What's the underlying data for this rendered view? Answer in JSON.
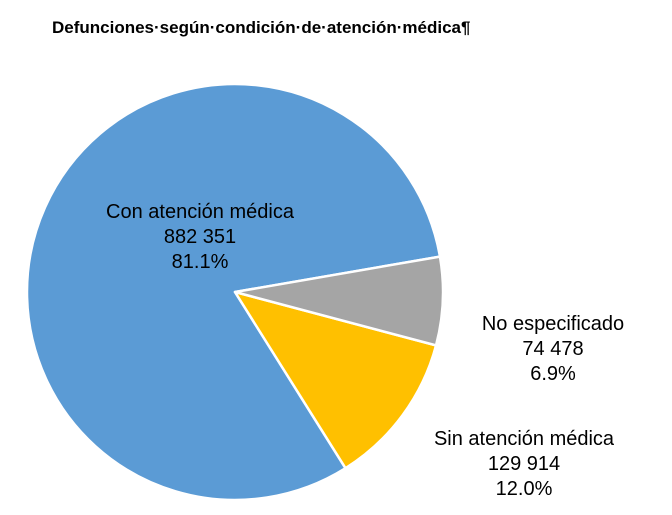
{
  "chart_data": {
    "type": "pie",
    "title": "Defunciones·según·condición·de·atención·médica¶",
    "slices": [
      {
        "label": "Con atención médica",
        "value_text": "882 351",
        "value": 882351,
        "percent_text": "81.1%",
        "percent": 81.1,
        "color": "#5b9bd5"
      },
      {
        "label": "Sin atención médica",
        "value_text": "129 914",
        "value": 129914,
        "percent_text": "12.0%",
        "percent": 12.0,
        "color": "#ffc000"
      },
      {
        "label": "No especificado",
        "value_text": "74 478",
        "value": 74478,
        "percent_text": "6.9%",
        "percent": 6.9,
        "color": "#a5a5a5"
      }
    ],
    "legend": "none",
    "data_labels": "label, value and percent"
  }
}
